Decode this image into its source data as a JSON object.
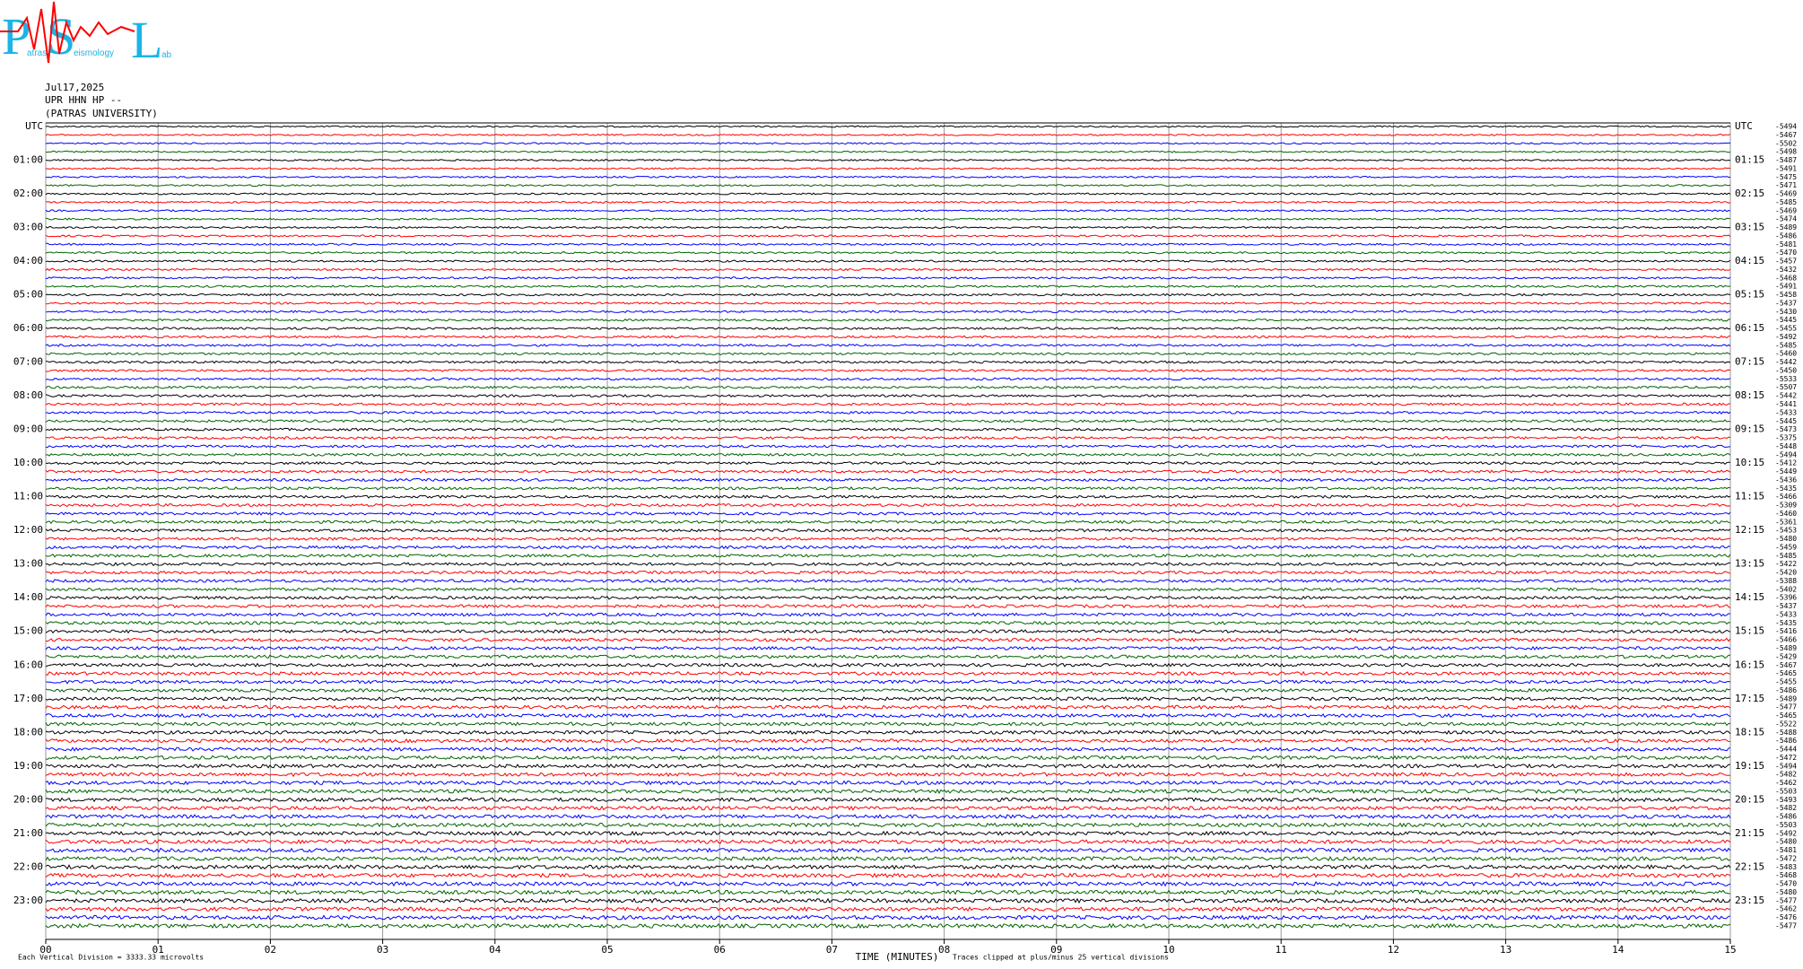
{
  "logo": {
    "p": "P",
    "p_rest": "atras",
    "s": "S",
    "s_rest": "eismology",
    "l": "L",
    "l_rest": "ab"
  },
  "header": {
    "date": "Jul17,2025",
    "station": "UPR HHN HP --",
    "institution": "(PATRAS UNIVERSITY)"
  },
  "plot": {
    "left_labels": [
      "UTC",
      "01:00",
      "02:00",
      "03:00",
      "04:00",
      "05:00",
      "06:00",
      "07:00",
      "08:00",
      "09:00",
      "10:00",
      "11:00",
      "12:00",
      "13:00",
      "14:00",
      "15:00",
      "16:00",
      "17:00",
      "18:00",
      "19:00",
      "20:00",
      "21:00",
      "22:00",
      "23:00"
    ],
    "right_labels": [
      "UTC",
      "01:15",
      "02:15",
      "03:15",
      "04:15",
      "05:15",
      "06:15",
      "07:15",
      "08:15",
      "09:15",
      "10:15",
      "11:15",
      "12:15",
      "13:15",
      "14:15",
      "15:15",
      "16:15",
      "17:15",
      "18:15",
      "19:15",
      "20:15",
      "21:15",
      "22:15",
      "23:15"
    ],
    "row_offsets": [
      -5494,
      -5467,
      -5502,
      -5498,
      -5487,
      -5491,
      -5475,
      -5471,
      -5469,
      -5485,
      -5469,
      -5474,
      -5489,
      -5486,
      -5481,
      -5470,
      -5457,
      -5432,
      -5468,
      -5491,
      -5458,
      -5437,
      -5430,
      -5445,
      -5455,
      -5492,
      -5485,
      -5460,
      -5442,
      -5450,
      -5533,
      -5507,
      -5442,
      -5441,
      -5433,
      -5445,
      -5473,
      -5375,
      -5448,
      -5494,
      -5412,
      -5449,
      -5436,
      -5435,
      -5466,
      -5309,
      -5460,
      -5361,
      -5453,
      -5480,
      -5459,
      -5485,
      -5422,
      -5420,
      -5388,
      -5402,
      -5396,
      -5437,
      -5433,
      -5435,
      -5416,
      -5466,
      -5489,
      -5429,
      -5467,
      -5465,
      -5455,
      -5486,
      -5489,
      -5477,
      -5465,
      -5522,
      -5488,
      -5486,
      -5444,
      -5472,
      -5494,
      -5482,
      -5462,
      -5503,
      -5493,
      -5482,
      -5486,
      -5503,
      -5492,
      -5480,
      -5481,
      -5472,
      -5483,
      -5468,
      -5470,
      -5480,
      -5477,
      -5462,
      -5476,
      -5477
    ],
    "x_ticks": [
      "00",
      "01",
      "02",
      "03",
      "04",
      "05",
      "06",
      "07",
      "08",
      "09",
      "10",
      "11",
      "12",
      "13",
      "14",
      "15"
    ],
    "x_label": "TIME (MINUTES)",
    "scale_note": "Each Vertical Division = 3333.33 microvolts",
    "clip_note": "Traces clipped at plus/minus 25 vertical divisions",
    "trace_colors": [
      "#000000",
      "#ff0000",
      "#0000ff",
      "#006400"
    ]
  }
}
